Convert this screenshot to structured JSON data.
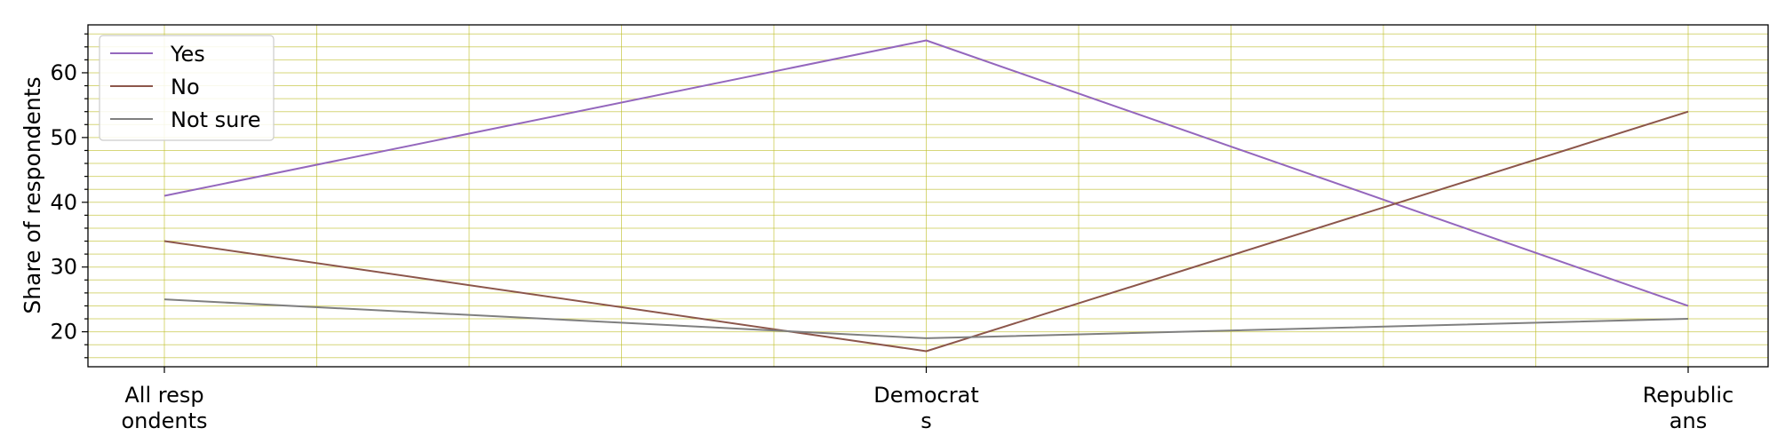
{
  "chart_data": {
    "type": "line",
    "categories": [
      "All resp\nondents",
      "Democrat\ns",
      "Republic\nans"
    ],
    "series": [
      {
        "name": "Yes",
        "values": [
          41,
          65,
          24
        ],
        "color": "#9467bd"
      },
      {
        "name": "No",
        "values": [
          34,
          17,
          54
        ],
        "color": "#8c564b"
      },
      {
        "name": "Not sure",
        "values": [
          25,
          19,
          22
        ],
        "color": "#7f7f7f"
      }
    ],
    "ylabel": "Share of respondents",
    "xlabel": "",
    "ylim": [
      14.6,
      67.4
    ],
    "yticks": [
      20,
      30,
      40,
      50,
      60
    ],
    "grid": true,
    "grid_color": "#bcbd22",
    "legend_position": "top-left"
  }
}
